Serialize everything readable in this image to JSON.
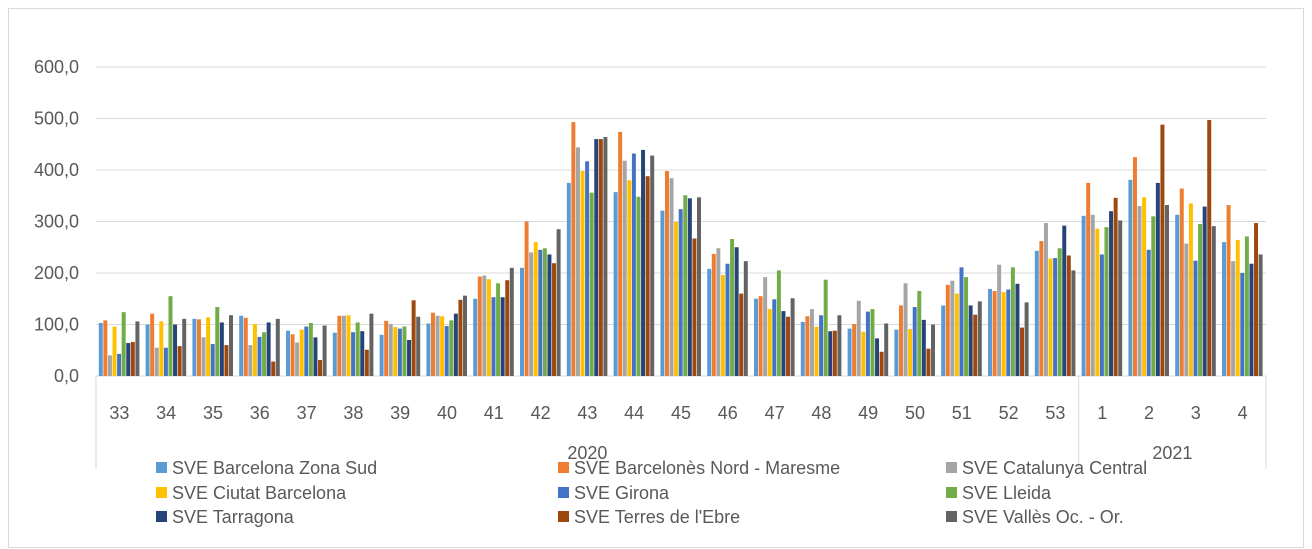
{
  "chart_data": {
    "type": "bar",
    "ylim": [
      0,
      600
    ],
    "yticks": [
      "0,0",
      "100,0",
      "200,0",
      "300,0",
      "400,0",
      "500,0",
      "600,0"
    ],
    "grid": true,
    "legend_placement": "bottom",
    "categories": [
      "33",
      "34",
      "35",
      "36",
      "37",
      "38",
      "39",
      "40",
      "41",
      "42",
      "43",
      "44",
      "45",
      "46",
      "47",
      "48",
      "49",
      "50",
      "51",
      "52",
      "53",
      "1",
      "2",
      "3",
      "4"
    ],
    "groups": [
      {
        "label": "2020",
        "count": 21
      },
      {
        "label": "2021",
        "count": 4
      }
    ],
    "series": [
      {
        "name": "SVE  Barcelona Zona Sud",
        "color": "#5B9BD5",
        "values": [
          103,
          100,
          111,
          117,
          88,
          84,
          80,
          102,
          150,
          210,
          375,
          357,
          321,
          208,
          150,
          105,
          92,
          90,
          137,
          169,
          243,
          311,
          381,
          313,
          260
        ]
      },
      {
        "name": "SVE Barcelonès Nord - Maresme",
        "color": "#ED7D31",
        "values": [
          108,
          121,
          110,
          113,
          81,
          117,
          107,
          123,
          193,
          300,
          493,
          474,
          398,
          237,
          155,
          116,
          101,
          137,
          177,
          165,
          262,
          375,
          425,
          364,
          332
        ]
      },
      {
        "name": "SVE Catalunya Central",
        "color": "#A5A5A5",
        "values": [
          40,
          55,
          75,
          60,
          65,
          117,
          101,
          117,
          195,
          240,
          444,
          418,
          384,
          248,
          192,
          130,
          146,
          180,
          185,
          216,
          297,
          313,
          330,
          257,
          223
        ]
      },
      {
        "name": "SVE Ciutat Barcelona",
        "color": "#FFC000",
        "values": [
          96,
          106,
          114,
          101,
          90,
          118,
          95,
          116,
          188,
          260,
          398,
          380,
          299,
          196,
          130,
          96,
          86,
          91,
          160,
          163,
          228,
          286,
          347,
          335,
          264
        ]
      },
      {
        "name": "SVE Girona",
        "color": "#4472C4",
        "values": [
          43,
          55,
          62,
          76,
          96,
          85,
          92,
          97,
          153,
          245,
          417,
          432,
          324,
          218,
          149,
          118,
          125,
          134,
          211,
          168,
          229,
          236,
          245,
          224,
          200
        ]
      },
      {
        "name": "SVE Lleida",
        "color": "#70AD47",
        "values": [
          124,
          155,
          134,
          85,
          103,
          104,
          96,
          108,
          180,
          248,
          356,
          348,
          351,
          266,
          205,
          187,
          130,
          165,
          192,
          211,
          248,
          289,
          310,
          295,
          271
        ]
      },
      {
        "name": "SVE Tarragona",
        "color": "#264478",
        "values": [
          64,
          100,
          104,
          104,
          75,
          87,
          70,
          121,
          153,
          236,
          460,
          439,
          345,
          250,
          126,
          87,
          73,
          109,
          137,
          179,
          292,
          320,
          375,
          329,
          218
        ]
      },
      {
        "name": "SVE Terres de l'Ebre",
        "color": "#9E480E",
        "values": [
          66,
          58,
          60,
          28,
          31,
          51,
          147,
          148,
          186,
          219,
          460,
          388,
          267,
          160,
          115,
          88,
          47,
          53,
          119,
          94,
          234,
          346,
          488,
          497,
          297
        ]
      },
      {
        "name": "SVE Vallès Oc. - Or.",
        "color": "#636363",
        "values": [
          106,
          111,
          118,
          111,
          98,
          121,
          115,
          156,
          210,
          285,
          464,
          428,
          347,
          223,
          151,
          118,
          102,
          100,
          145,
          143,
          205,
          302,
          332,
          291,
          236
        ]
      }
    ]
  }
}
